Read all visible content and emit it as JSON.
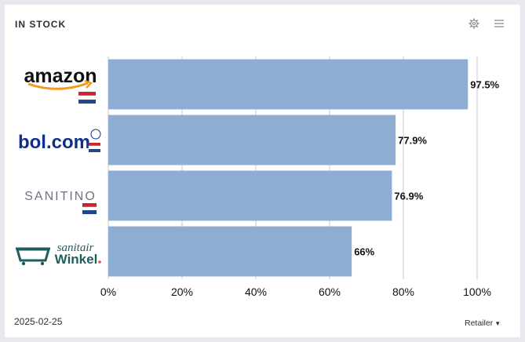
{
  "widget": {
    "title": "IN STOCK",
    "date": "2025-02-25",
    "group_by_label": "Retailer",
    "icons": {
      "settings": "gear-icon",
      "menu": "hamburger-menu-icon",
      "dropdown": "caret-down-icon"
    }
  },
  "retailers": [
    {
      "logo_text": "amazon",
      "flag": "netherlands-flag"
    },
    {
      "logo_text": "bol.com",
      "flag": "netherlands-flag"
    },
    {
      "logo_text": "SANITINO",
      "flag": "netherlands-flag"
    },
    {
      "logo_text": "sanitair Winkel",
      "flag": ""
    }
  ],
  "chart_data": {
    "type": "bar",
    "orientation": "horizontal",
    "categories": [
      "amazon",
      "bol.com",
      "SANITINO",
      "sanitair Winkel"
    ],
    "values": [
      97.5,
      77.9,
      76.9,
      66
    ],
    "data_labels": [
      "97.5%",
      "77.9%",
      "76.9%",
      "66%"
    ],
    "xlim": [
      0,
      100
    ],
    "xticks": [
      0,
      20,
      40,
      60,
      80,
      100
    ],
    "xtick_labels": [
      "0%",
      "20%",
      "40%",
      "60%",
      "80%",
      "100%"
    ],
    "grid": true,
    "bar_color": "#8daed2",
    "grid_color": "#c8c8c8",
    "title": ""
  }
}
